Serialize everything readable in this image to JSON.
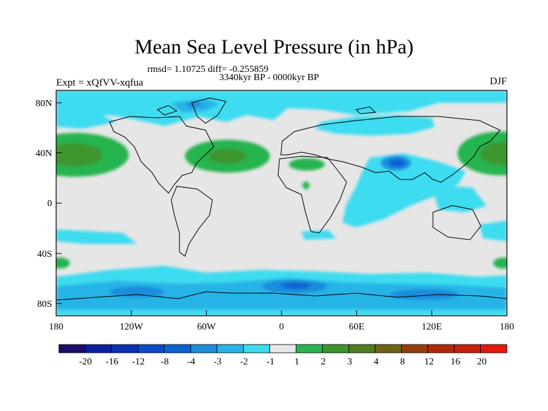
{
  "title": "Mean Sea Level Pressure (in hPa)",
  "stats": "rmsd= 1.10725 diff= -0.255859",
  "period": "3340kyr BP - 0000kyr BP",
  "experiment": "Expt = xQfVV-xqfua",
  "season": "DJF",
  "map": {
    "lon_ticks": [
      "180",
      "120W",
      "60W",
      "0",
      "60E",
      "120E",
      "180"
    ],
    "lat_ticks": [
      "80N",
      "40N",
      "0",
      "40S",
      "80S"
    ],
    "lon_range": [
      -180,
      180
    ],
    "lat_range": [
      -90,
      90
    ],
    "background_color": "#e6e6e6"
  },
  "colorbar": {
    "labels": [
      "-20",
      "-16",
      "-12",
      "-8",
      "-4",
      "-3",
      "-2",
      "-1",
      "1",
      "2",
      "3",
      "4",
      "8",
      "12",
      "16",
      "20"
    ],
    "colors": [
      "#1e0c6e",
      "#0a1ea0",
      "#0a32b4",
      "#0a4bc8",
      "#0a64d2",
      "#1e8cdc",
      "#28b4e6",
      "#3cdcf0",
      "#e6e6e6",
      "#28b450",
      "#3c962d",
      "#507d1e",
      "#6e6414",
      "#963c0a",
      "#b4280a",
      "#c81e0a",
      "#e6190a"
    ]
  }
}
